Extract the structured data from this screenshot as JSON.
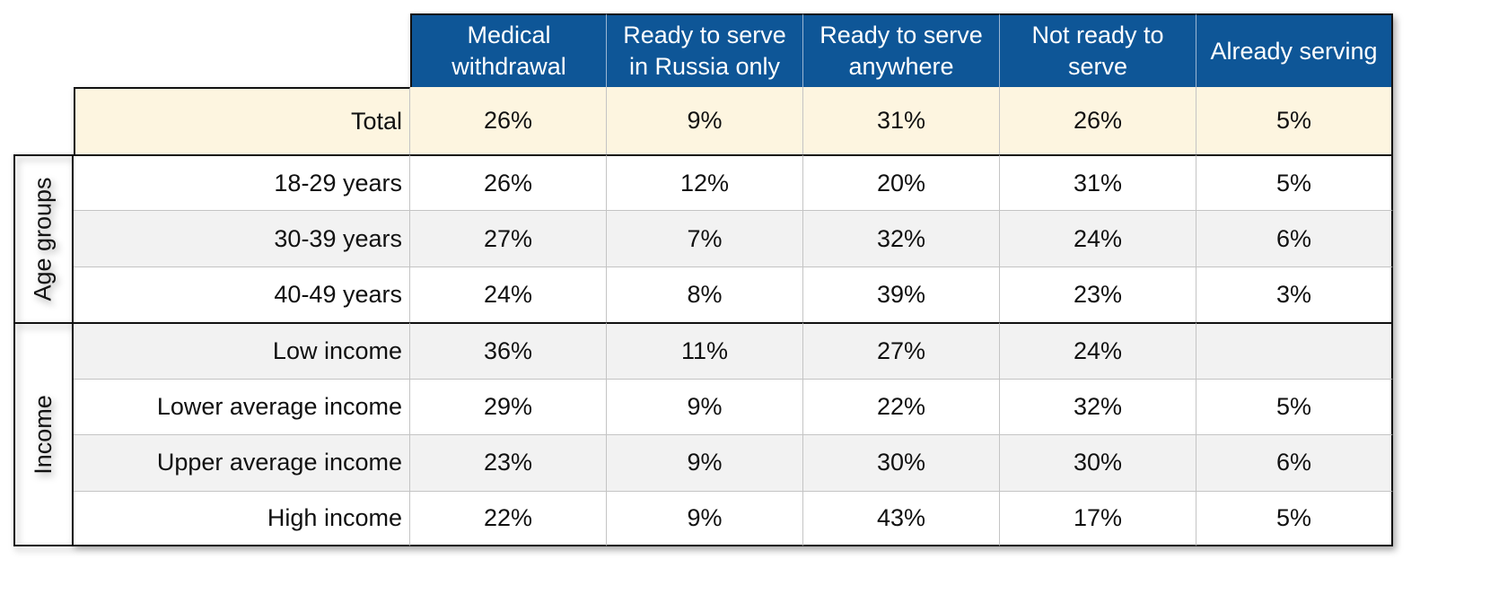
{
  "table": {
    "columns": [
      "Medical withdrawal",
      "Ready to serve in Russia only",
      "Ready to serve anywhere",
      "Not ready to serve",
      "Already serving"
    ],
    "total": {
      "label": "Total",
      "values": [
        "26%",
        "9%",
        "31%",
        "26%",
        "5%"
      ]
    },
    "groups": [
      {
        "label": "Age groups",
        "rows": [
          {
            "label": "18-29 years",
            "values": [
              "26%",
              "12%",
              "20%",
              "31%",
              "5%"
            ]
          },
          {
            "label": "30-39 years",
            "values": [
              "27%",
              "7%",
              "32%",
              "24%",
              "6%"
            ]
          },
          {
            "label": "40-49 years",
            "values": [
              "24%",
              "8%",
              "39%",
              "23%",
              "3%"
            ]
          }
        ]
      },
      {
        "label": "Income",
        "rows": [
          {
            "label": "Low income",
            "values": [
              "36%",
              "11%",
              "27%",
              "24%",
              null
            ]
          },
          {
            "label": "Lower average income",
            "values": [
              "29%",
              "9%",
              "22%",
              "32%",
              "5%"
            ]
          },
          {
            "label": "Upper average income",
            "values": [
              "23%",
              "9%",
              "30%",
              "30%",
              "6%"
            ]
          },
          {
            "label": "High income",
            "values": [
              "22%",
              "9%",
              "43%",
              "17%",
              "5%"
            ]
          }
        ]
      }
    ]
  }
}
